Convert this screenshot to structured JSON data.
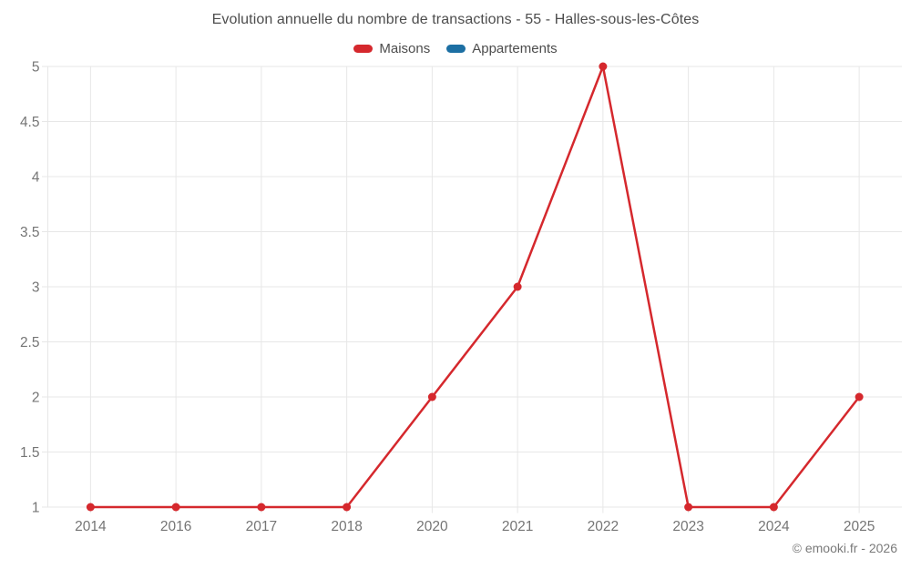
{
  "chart_data": {
    "type": "line",
    "title": "Evolution annuelle du nombre de transactions - 55 - Halles-sous-les-Côtes",
    "categories": [
      "2014",
      "2016",
      "2017",
      "2018",
      "2020",
      "2021",
      "2022",
      "2023",
      "2024",
      "2025"
    ],
    "series": [
      {
        "name": "Maisons",
        "color": "#d5282d",
        "values": [
          1,
          1,
          1,
          1,
          2,
          3,
          5,
          1,
          1,
          2
        ]
      },
      {
        "name": "Appartements",
        "color": "#1c6fa3",
        "values": []
      }
    ],
    "xlabel": "",
    "ylabel": "",
    "ylim": [
      1,
      5
    ],
    "y_tick_step": 0.5,
    "y_tick_labels": [
      "1",
      "1.5",
      "2",
      "2.5",
      "3",
      "3.5",
      "4",
      "4.5",
      "5"
    ],
    "grid": true,
    "legend_position": "top",
    "footer": "© emooki.fr - 2026"
  },
  "colors": {
    "maisons": "#d5282d",
    "appartements": "#1c6fa3",
    "gridline": "#e7e7e7",
    "tick_label": "#757575",
    "title_text": "#4d4d4d"
  }
}
